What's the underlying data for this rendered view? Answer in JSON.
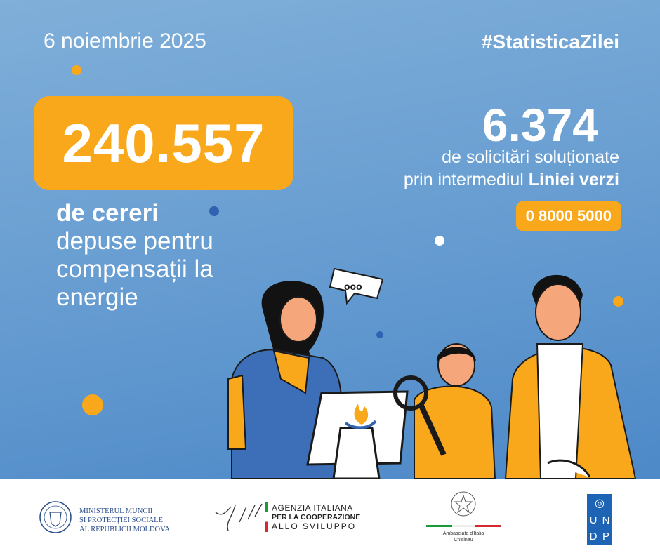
{
  "header": {
    "date": "6 noiembrie 2025",
    "hashtag": "#StatisticaZilei"
  },
  "left_stat": {
    "value": "240.557",
    "label_bold": "de cereri",
    "label_rest": " depuse pentru compensații la energie"
  },
  "right_stat": {
    "value": "6.374",
    "line1": "de solicitări soluționate",
    "line2_normal": "prin intermediul ",
    "line2_bold": "Liniei verzi",
    "phone": "0 8000 5000"
  },
  "colors": {
    "accent": "#f9a81c",
    "background": "#6a9fd2"
  },
  "speech_bubble": "ooo",
  "footer": {
    "ministry": [
      "MINISTERUL MUNCII",
      "ȘI PROTECȚIEI SOCIALE",
      "AL REPUBLICII MOLDOVA"
    ],
    "aics": [
      "AGENZIA ITALIANA",
      "PER LA COOPERAZIONE",
      "ALLO SVILUPPO"
    ],
    "embassy": [
      "Ambasciata d'Italia",
      "Chisinau"
    ],
    "undp": [
      "U",
      "N",
      "D",
      "P"
    ]
  }
}
